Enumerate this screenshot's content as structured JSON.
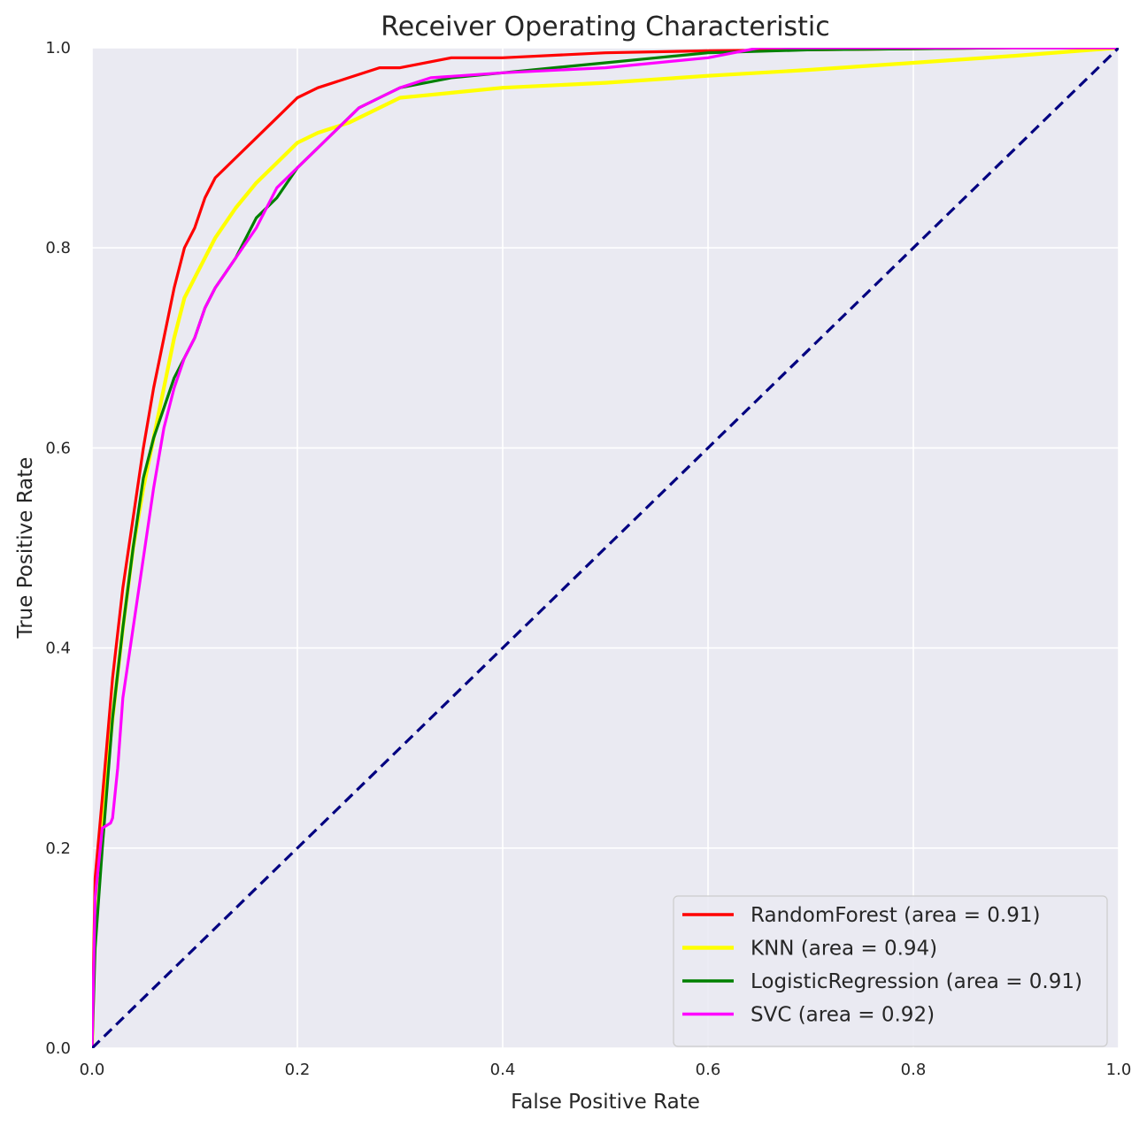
{
  "chart_data": {
    "type": "line",
    "title": "Receiver Operating Characteristic",
    "xlabel": "False Positive Rate",
    "ylabel": "True Positive Rate",
    "xlim": [
      0.0,
      1.0
    ],
    "ylim": [
      0.0,
      1.0
    ],
    "xticks": [
      "0.0",
      "0.2",
      "0.4",
      "0.6",
      "0.8",
      "1.0"
    ],
    "yticks": [
      "0.0",
      "0.2",
      "0.4",
      "0.6",
      "0.8",
      "1.0"
    ],
    "grid": true,
    "legend_position": "lower-right",
    "background_color": "#EAEAF2",
    "grid_color": "#FFFFFF",
    "series": [
      {
        "name": "RandomForest (area = 0.91)",
        "color": "#FF0000",
        "x": [
          0.0,
          0.003,
          0.01,
          0.02,
          0.03,
          0.04,
          0.05,
          0.06,
          0.07,
          0.08,
          0.09,
          0.1,
          0.11,
          0.12,
          0.14,
          0.16,
          0.18,
          0.2,
          0.22,
          0.25,
          0.28,
          0.3,
          0.35,
          0.4,
          0.5,
          0.6,
          0.7,
          0.8,
          0.9,
          1.0
        ],
        "y": [
          0.0,
          0.17,
          0.25,
          0.37,
          0.46,
          0.53,
          0.6,
          0.66,
          0.71,
          0.76,
          0.8,
          0.82,
          0.85,
          0.87,
          0.89,
          0.91,
          0.93,
          0.95,
          0.96,
          0.97,
          0.98,
          0.98,
          0.99,
          0.99,
          0.995,
          0.997,
          0.998,
          0.999,
          1.0,
          1.0
        ]
      },
      {
        "name": "KNN (area = 0.94)",
        "color": "#FFFF00",
        "x": [
          0.0,
          0.003,
          0.01,
          0.02,
          0.03,
          0.04,
          0.05,
          0.06,
          0.07,
          0.08,
          0.09,
          0.1,
          0.12,
          0.14,
          0.16,
          0.18,
          0.2,
          0.22,
          0.25,
          0.28,
          0.3,
          0.32,
          0.35,
          0.4,
          0.5,
          0.6,
          0.7,
          0.8,
          0.9,
          1.0
        ],
        "y": [
          0.0,
          0.15,
          0.23,
          0.33,
          0.42,
          0.5,
          0.56,
          0.61,
          0.66,
          0.71,
          0.75,
          0.77,
          0.81,
          0.84,
          0.865,
          0.885,
          0.905,
          0.915,
          0.925,
          0.94,
          0.95,
          0.952,
          0.955,
          0.96,
          0.965,
          0.972,
          0.978,
          0.985,
          0.992,
          1.0
        ]
      },
      {
        "name": "LogisticRegression (area = 0.91)",
        "color": "#008000",
        "x": [
          0.0,
          0.003,
          0.01,
          0.02,
          0.03,
          0.04,
          0.05,
          0.06,
          0.07,
          0.08,
          0.09,
          0.1,
          0.11,
          0.12,
          0.14,
          0.16,
          0.18,
          0.2,
          0.22,
          0.24,
          0.26,
          0.28,
          0.3,
          0.35,
          0.4,
          0.45,
          0.5,
          0.55,
          0.6,
          0.7,
          0.8,
          0.9,
          1.0
        ],
        "y": [
          0.0,
          0.1,
          0.2,
          0.33,
          0.42,
          0.5,
          0.57,
          0.61,
          0.64,
          0.67,
          0.69,
          0.71,
          0.74,
          0.76,
          0.79,
          0.83,
          0.85,
          0.88,
          0.9,
          0.92,
          0.94,
          0.95,
          0.96,
          0.97,
          0.975,
          0.98,
          0.985,
          0.99,
          0.995,
          0.998,
          0.999,
          1.0,
          1.0
        ]
      },
      {
        "name": "SVC (area = 0.92)",
        "color": "#FF00FF",
        "x": [
          0.0,
          0.003,
          0.01,
          0.018,
          0.02,
          0.025,
          0.03,
          0.04,
          0.05,
          0.06,
          0.07,
          0.08,
          0.09,
          0.1,
          0.11,
          0.12,
          0.14,
          0.16,
          0.18,
          0.2,
          0.22,
          0.24,
          0.26,
          0.28,
          0.3,
          0.33,
          0.4,
          0.5,
          0.6,
          0.65,
          0.7,
          0.8,
          0.9,
          1.0
        ],
        "y": [
          0.0,
          0.15,
          0.22,
          0.225,
          0.23,
          0.28,
          0.35,
          0.42,
          0.49,
          0.56,
          0.62,
          0.66,
          0.69,
          0.71,
          0.74,
          0.76,
          0.79,
          0.82,
          0.86,
          0.88,
          0.9,
          0.92,
          0.94,
          0.95,
          0.96,
          0.97,
          0.975,
          0.98,
          0.99,
          1.0,
          1.0,
          1.0,
          1.0,
          1.0
        ]
      },
      {
        "name": "",
        "color": "#000080",
        "dashed": true,
        "x": [
          0.0,
          1.0
        ],
        "y": [
          0.0,
          1.0
        ]
      }
    ]
  }
}
